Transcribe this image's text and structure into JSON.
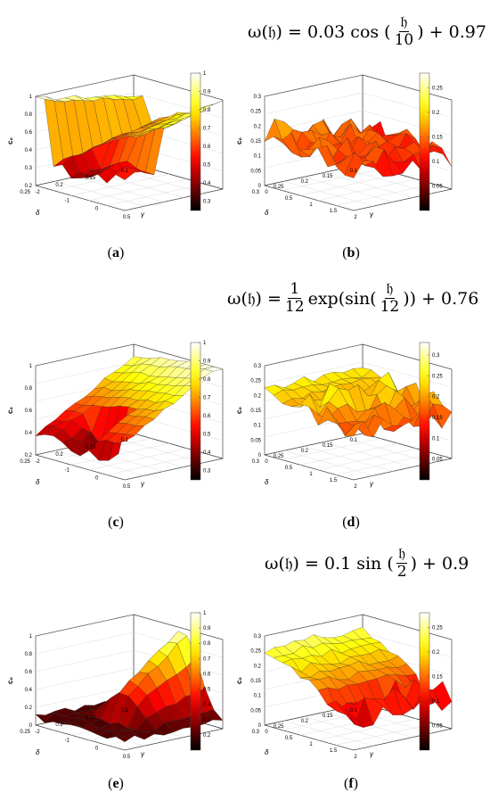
{
  "formulas": [
    {
      "lhs": "ω(𝔥) = 0.03 cos (",
      "num": "𝔥",
      "den": "10",
      "rhs": ") + 0.97"
    },
    {
      "lhs": "ω(𝔥) =",
      "num": "1",
      "den": "12",
      "mid": "exp(sin(",
      "num2": "𝔥",
      "den2": "12",
      "rhs": ")) + 0.76"
    },
    {
      "lhs": "ω(𝔥) = 0.1 sin (",
      "num": "𝔥",
      "den": "2",
      "rhs": ") + 0.9"
    }
  ],
  "captions": [
    "a",
    "b",
    "c",
    "d",
    "e",
    "f"
  ],
  "chart_data": [
    {
      "id": "a",
      "type": "surface3d",
      "zlabel": "c₀",
      "xlabel": "γ",
      "ylabel": "δ",
      "x_ticks": [
        "-2",
        "-1",
        "0",
        "0.5"
      ],
      "y_ticks": [
        "0.1",
        "0.15",
        "0.2",
        "0.25"
      ],
      "z_ticks": [
        "0.2",
        "0.3",
        "0.4",
        "0.6",
        "0.8",
        "1"
      ],
      "zlim": [
        0.2,
        1
      ],
      "colorbar_ticks": [
        "0.3",
        "0.4",
        "0.5",
        "0.6",
        "0.7",
        "0.8",
        "0.9",
        "1"
      ],
      "clim": [
        0.25,
        1
      ],
      "colormap": "hot"
    },
    {
      "id": "b",
      "type": "surface3d",
      "zlabel": "c₀",
      "xlabel": "γ",
      "ylabel": "δ",
      "x_ticks": [
        "0",
        "0.5",
        "1",
        "1.5",
        "2"
      ],
      "y_ticks": [
        "0.1",
        "0.15",
        "0.2",
        "0.25",
        "0.3"
      ],
      "z_ticks": [
        "0",
        "0.05",
        "0.1",
        "0.15",
        "0.2",
        "0.25",
        "0.3"
      ],
      "zlim": [
        0,
        0.3
      ],
      "colorbar_ticks": [
        "0.05",
        "0.1",
        "0.15",
        "0.2",
        "0.25"
      ],
      "clim": [
        0,
        0.28
      ],
      "colormap": "hot"
    },
    {
      "id": "c",
      "type": "surface3d",
      "zlabel": "c₀",
      "xlabel": "γ",
      "ylabel": "δ",
      "x_ticks": [
        "-2",
        "-1",
        "0",
        "0.5"
      ],
      "y_ticks": [
        "0.1",
        "0.15",
        "0.2",
        "0.25"
      ],
      "z_ticks": [
        "0.2",
        "0.4",
        "0.6",
        "0.8",
        "1"
      ],
      "zlim": [
        0.2,
        1
      ],
      "colorbar_ticks": [
        "0.3",
        "0.4",
        "0.5",
        "0.6",
        "0.7",
        "0.8",
        "0.9",
        "1"
      ],
      "clim": [
        0.25,
        1
      ],
      "colormap": "hot"
    },
    {
      "id": "d",
      "type": "surface3d",
      "zlabel": "c₀",
      "xlabel": "γ",
      "ylabel": "δ",
      "x_ticks": [
        "0",
        "0.5",
        "1",
        "1.5",
        "2"
      ],
      "y_ticks": [
        "0.1",
        "0.15",
        "0.2",
        "0.25",
        "0.3"
      ],
      "z_ticks": [
        "0",
        "0.05",
        "0.1",
        "0.15",
        "0.2",
        "0.25",
        "0.3"
      ],
      "zlim": [
        0,
        0.3
      ],
      "colorbar_ticks": [
        "0.05",
        "0.1",
        "0.15",
        "0.2",
        "0.25",
        "0.3"
      ],
      "clim": [
        0,
        0.33
      ],
      "colormap": "hot"
    },
    {
      "id": "e",
      "type": "surface3d",
      "zlabel": "c₀",
      "xlabel": "γ",
      "ylabel": "δ",
      "x_ticks": [
        "-2",
        "-1",
        "0",
        "0.5"
      ],
      "y_ticks": [
        "0.1",
        "0.15",
        "0.2",
        "0.25"
      ],
      "z_ticks": [
        "0",
        "0.2",
        "0.4",
        "0.6",
        "0.8",
        "1"
      ],
      "zlim": [
        0,
        1
      ],
      "colorbar_ticks": [
        "0.2",
        "0.3",
        "0.4",
        "0.5",
        "0.6",
        "0.7",
        "0.8",
        "0.9",
        "1"
      ],
      "clim": [
        0.1,
        1
      ],
      "colormap": "hot"
    },
    {
      "id": "f",
      "type": "surface3d",
      "zlabel": "c₀",
      "xlabel": "γ",
      "ylabel": "δ",
      "x_ticks": [
        "0",
        "0.5",
        "1",
        "1.5",
        "2"
      ],
      "y_ticks": [
        "0.1",
        "0.15",
        "0.2",
        "0.25",
        "0.3"
      ],
      "z_ticks": [
        "0",
        "0.05",
        "0.1",
        "0.15",
        "0.2",
        "0.25",
        "0.3"
      ],
      "zlim": [
        0,
        0.3
      ],
      "colorbar_ticks": [
        "0.05",
        "0.1",
        "0.15",
        "0.2",
        "0.25"
      ],
      "clim": [
        0,
        0.28
      ],
      "colormap": "hot"
    }
  ]
}
